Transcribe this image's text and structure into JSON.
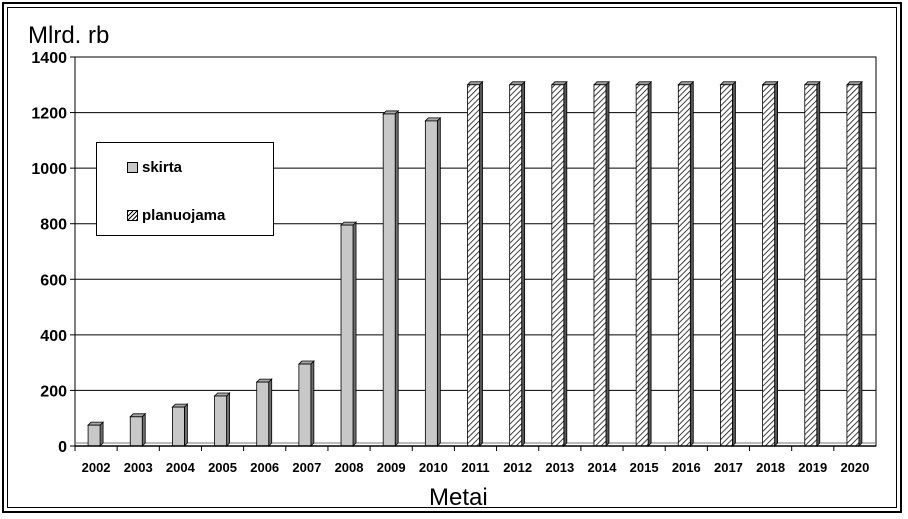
{
  "chart_data": {
    "type": "bar",
    "unit_label": "Mlrd. rb",
    "xlabel": "Metai",
    "categories": [
      "2002",
      "2003",
      "2004",
      "2005",
      "2006",
      "2007",
      "2008",
      "2009",
      "2010",
      "2011",
      "2012",
      "2013",
      "2014",
      "2015",
      "2016",
      "2017",
      "2018",
      "2019",
      "2020"
    ],
    "series": [
      {
        "name": "skirta",
        "values": [
          75,
          105,
          140,
          180,
          230,
          295,
          795,
          1195,
          1170,
          null,
          null,
          null,
          null,
          null,
          null,
          null,
          null,
          null,
          null
        ],
        "color": "#c8c8c8"
      },
      {
        "name": "planuojama",
        "values": [
          null,
          null,
          null,
          null,
          null,
          null,
          null,
          null,
          null,
          1300,
          1300,
          1300,
          1300,
          1300,
          1300,
          1300,
          1300,
          1300,
          1300
        ],
        "color": "#ffffff"
      }
    ],
    "ylim": [
      0,
      1400
    ],
    "yticks": [
      "0",
      "200",
      "400",
      "600",
      "800",
      "1000",
      "1200",
      "1400"
    ],
    "grid": true,
    "legend_position": "upper-left"
  }
}
